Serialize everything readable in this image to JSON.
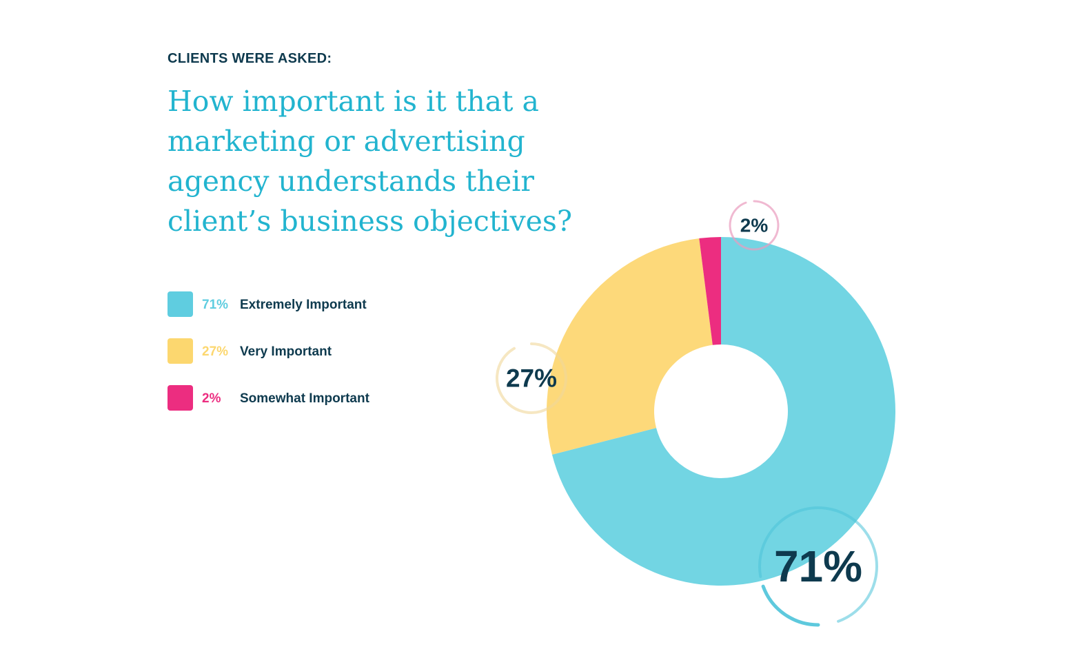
{
  "header": {
    "eyebrow": "CLIENTS WERE ASKED:",
    "question": "How important is it that a marketing or advertising agency understands their client’s business objectives?"
  },
  "chart_data": {
    "type": "pie",
    "style": "donut",
    "title": "How important is it that a marketing or advertising agency understands their client’s business objectives?",
    "series": [
      {
        "name": "Extremely Important",
        "value": 71,
        "value_label": "71%",
        "color": "#72d5e3",
        "legend_color": "#5fcde0"
      },
      {
        "name": "Very Important",
        "value": 27,
        "value_label": "27%",
        "color": "#fdd97a",
        "legend_color": "#fcd76f"
      },
      {
        "name": "Somewhat Important",
        "value": 2,
        "value_label": "2%",
        "color": "#ec2d80",
        "legend_color": "#ec2d80"
      }
    ],
    "legend_position": "left",
    "colors": {
      "label_text": "#0e3a4e",
      "question": "#22b4cf"
    }
  }
}
